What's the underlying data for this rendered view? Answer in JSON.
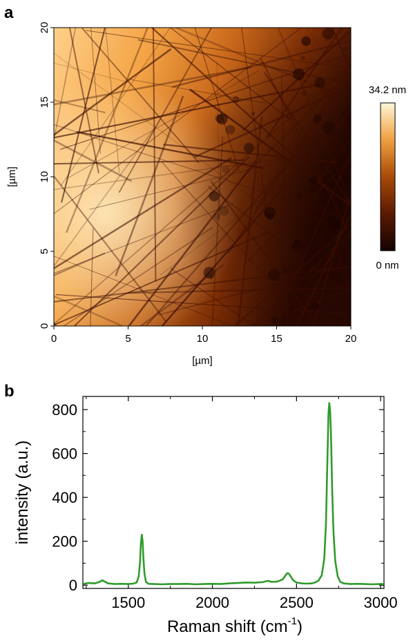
{
  "panels": {
    "a": "a",
    "b": "b"
  },
  "chart_data": [
    {
      "type": "heatmap",
      "panel": "a",
      "xlabel": "[µm]",
      "ylabel": "[µm]",
      "xlim": [
        0,
        20
      ],
      "ylim": [
        0,
        20
      ],
      "x_ticks": [
        "0",
        "5",
        "10",
        "15",
        "20"
      ],
      "y_ticks": [
        "0",
        "5",
        "10",
        "15",
        "20"
      ],
      "colorbar": {
        "max_label": "34.2 nm",
        "min_label": "0 nm",
        "range": [
          0,
          34.2
        ]
      },
      "colors": {
        "low": "#140300",
        "mid": "#a84a08",
        "high": "#fff6d8"
      }
    },
    {
      "type": "line",
      "panel": "b",
      "xlabel": "Raman shift (cm",
      "xlabel_sup": "-1",
      "xlabel_end": ")",
      "ylabel": "intensity (a.u.)",
      "xlim": [
        1230,
        3020
      ],
      "ylim": [
        -15,
        860
      ],
      "x_ticks": [
        1500,
        2000,
        2500,
        3000
      ],
      "y_ticks": [
        0,
        200,
        400,
        600,
        800
      ],
      "color": "#2e9b2a",
      "series": [
        {
          "x": [
            1230,
            1260,
            1300,
            1330,
            1345,
            1360,
            1380,
            1420,
            1460,
            1500,
            1530,
            1550,
            1562,
            1570,
            1575,
            1580,
            1585,
            1590,
            1596,
            1605,
            1620,
            1650,
            1700,
            1750,
            1800,
            1850,
            1900,
            1950,
            2000,
            2050,
            2100,
            2150,
            2200,
            2250,
            2300,
            2330,
            2350,
            2380,
            2400,
            2420,
            2435,
            2445,
            2455,
            2465,
            2480,
            2500,
            2530,
            2560,
            2590,
            2610,
            2630,
            2650,
            2665,
            2675,
            2683,
            2690,
            2695,
            2700,
            2705,
            2712,
            2720,
            2730,
            2745,
            2760,
            2780,
            2820,
            2860,
            2900,
            2950,
            3000,
            3020
          ],
          "y": [
            5,
            10,
            8,
            15,
            22,
            16,
            8,
            5,
            6,
            5,
            7,
            12,
            40,
            110,
            190,
            230,
            200,
            120,
            55,
            15,
            6,
            5,
            4,
            5,
            5,
            6,
            4,
            5,
            6,
            5,
            8,
            10,
            12,
            11,
            14,
            20,
            15,
            16,
            20,
            28,
            45,
            55,
            52,
            40,
            22,
            12,
            8,
            7,
            8,
            12,
            20,
            45,
            120,
            280,
            550,
            780,
            830,
            790,
            680,
            430,
            240,
            110,
            40,
            15,
            8,
            5,
            6,
            5,
            4,
            5,
            5
          ]
        }
      ]
    }
  ]
}
